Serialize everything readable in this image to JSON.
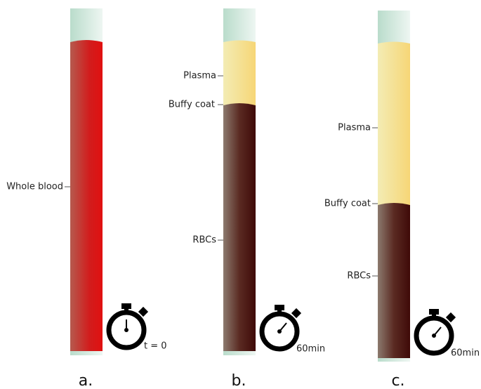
{
  "panels": [
    {
      "caption": "a.",
      "timer_label": "t = 0",
      "layers": [
        {
          "label": "Whole blood"
        }
      ]
    },
    {
      "caption": "b.",
      "timer_label": "60min",
      "layers": [
        {
          "label": "Plasma"
        },
        {
          "label": "Buffy coat"
        },
        {
          "label": "RBCs"
        }
      ]
    },
    {
      "caption": "c.",
      "timer_label": "60min",
      "layers": [
        {
          "label": "Plasma"
        },
        {
          "label": "Buffy coat"
        },
        {
          "label": "RBCs"
        }
      ]
    }
  ]
}
